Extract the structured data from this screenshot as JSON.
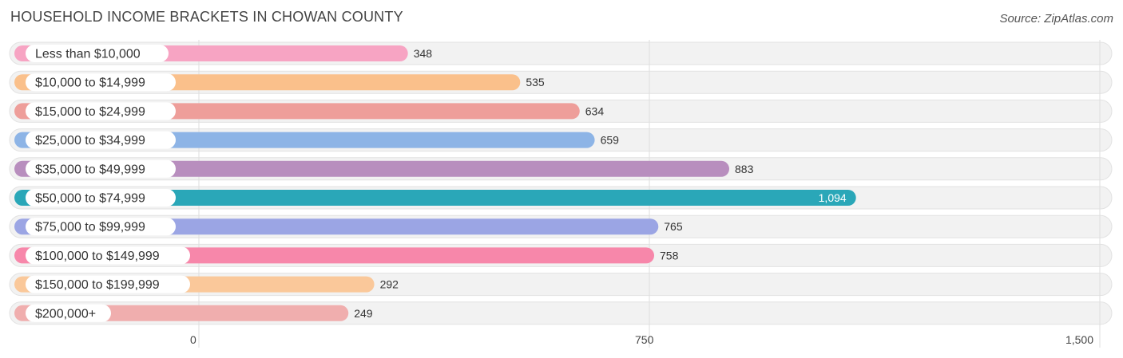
{
  "title": "HOUSEHOLD INCOME BRACKETS IN CHOWAN COUNTY",
  "source": "Source: ZipAtlas.com",
  "chart_data": {
    "type": "bar",
    "orientation": "horizontal",
    "title": "HOUSEHOLD INCOME BRACKETS IN CHOWAN COUNTY",
    "categories": [
      "Less than $10,000",
      "$10,000 to $14,999",
      "$15,000 to $24,999",
      "$25,000 to $34,999",
      "$35,000 to $49,999",
      "$50,000 to $74,999",
      "$75,000 to $99,999",
      "$100,000 to $149,999",
      "$150,000 to $199,999",
      "$200,000+"
    ],
    "values": [
      348,
      535,
      634,
      659,
      883,
      1094,
      765,
      758,
      292,
      249
    ],
    "value_labels": [
      "348",
      "535",
      "634",
      "659",
      "883",
      "1,094",
      "765",
      "758",
      "292",
      "249"
    ],
    "colors": [
      "#f7a4c3",
      "#fac08b",
      "#ee9e9a",
      "#8db4e6",
      "#b88ebe",
      "#2aa7b8",
      "#9ba5e4",
      "#f787aa",
      "#fac89a",
      "#f0aeae"
    ],
    "highlight_index": 5,
    "xlim": [
      0,
      1500
    ],
    "xticks": [
      0,
      750,
      1500
    ],
    "xtick_labels": [
      "0",
      "750",
      "1,500"
    ],
    "grid": true,
    "xlabel": "",
    "ylabel": ""
  }
}
